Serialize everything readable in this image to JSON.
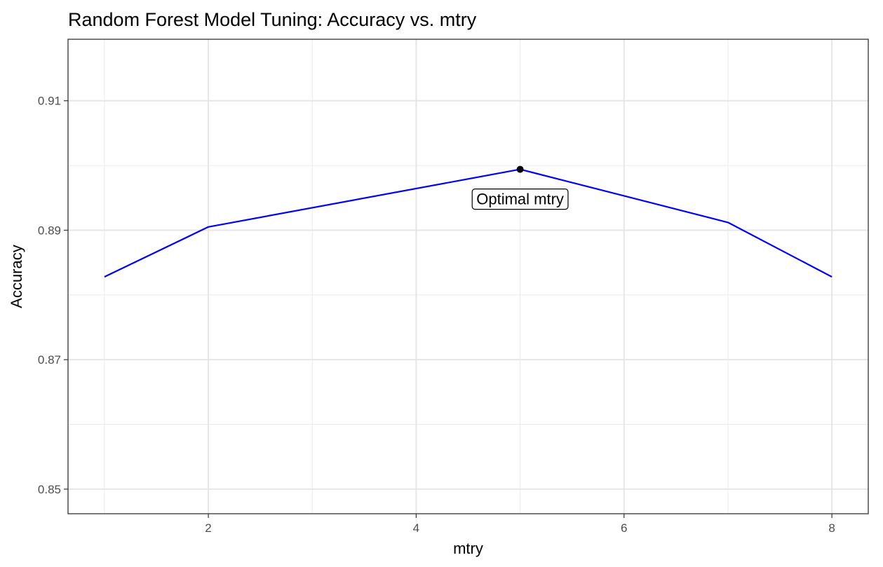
{
  "chart_data": {
    "type": "line",
    "title": "Random Forest Model Tuning: Accuracy vs. mtry",
    "xlabel": "mtry",
    "ylabel": "Accuracy",
    "x": [
      1,
      2,
      5,
      7,
      8
    ],
    "series": [
      {
        "values": [
          0.8828,
          0.8905,
          0.8994,
          0.8912,
          0.8828
        ],
        "color": "#0000ff"
      }
    ],
    "highlight": {
      "x": 5,
      "y": 0.8994,
      "label": "Optimal mtry",
      "color": "#000000"
    },
    "xlim": [
      0.65,
      8.35
    ],
    "ylim": [
      0.8462,
      0.9195
    ],
    "x_ticks": [
      2,
      4,
      6,
      8
    ],
    "x_tick_labels": [
      "2",
      "4",
      "6",
      "8"
    ],
    "x_minor_ticks": [
      1,
      3,
      5,
      7
    ],
    "y_ticks": [
      0.85,
      0.87,
      0.89,
      0.91
    ],
    "y_tick_labels": [
      "0.85",
      "0.87",
      "0.89",
      "0.91"
    ],
    "y_minor_ticks": [
      0.86,
      0.88,
      0.9,
      0.92
    ],
    "grid": true,
    "theme": "bw"
  }
}
